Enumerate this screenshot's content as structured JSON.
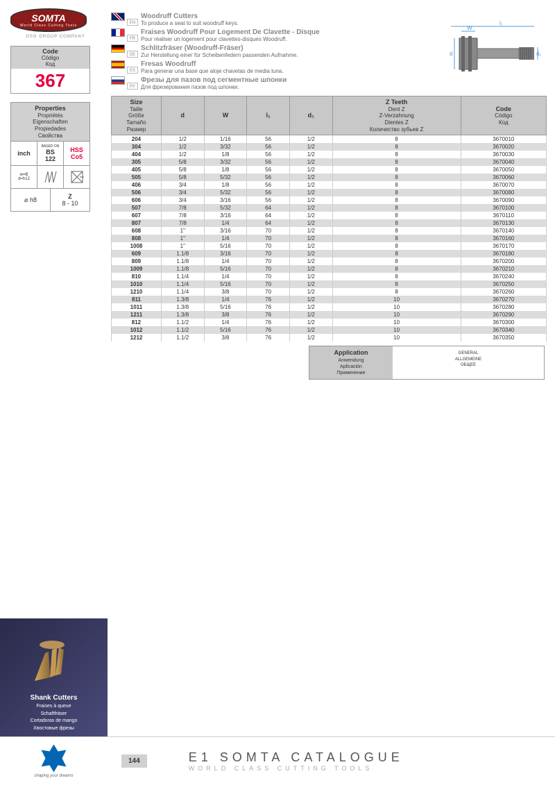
{
  "logo": {
    "name": "SOMTA",
    "sub": "World Class Cutting Tools",
    "osg": "OSG GROUP COMPANY"
  },
  "code": {
    "labels": "Code\nCódigo\nКод",
    "value": "367"
  },
  "props": {
    "header": "Properties\nPropriétés\nEigenschaften\nPropiedades\nСвойства",
    "inch": "inch",
    "based": "BASED ON",
    "bs": "BS\n122",
    "hss": "HSS\nCo5",
    "h8": "⌀ h8",
    "z": "Z",
    "zrange": "8 - 10"
  },
  "titles": [
    {
      "lang": "EN",
      "main": "Woodruff Cutters",
      "sub": "To produce a seat to suit woodruff keys."
    },
    {
      "lang": "FR",
      "main": "Fraises Woodruff Pour Logement De Clavette - Disque",
      "sub": "Pour réaliser un logement pour clavettes-disques Woodruff."
    },
    {
      "lang": "DE",
      "main": "Schlitzfräser (Woodruff-Fräser)",
      "sub": "Zur Herstellung einer für Scheibenfedern passenden Aufnahme."
    },
    {
      "lang": "ES",
      "main": "Fresas Woodruff",
      "sub": "Para generar una base que aloje chavetas de media luna."
    },
    {
      "lang": "РУ",
      "main": "Фрезы для пазов под сегментные шпонки",
      "sub": "Для фрезерования пазов под шпонки."
    }
  ],
  "diagram": {
    "w": "W",
    "l": "l₁",
    "d": "d",
    "d1": "d₁"
  },
  "table": {
    "headers": {
      "size": "Size\nTaille\nGröße\nTamaño\nРазмер",
      "d": "d",
      "w": "W",
      "l": "l₁",
      "d1": "d₁",
      "z": "Z Teeth\nDent Z\nZ-Verzahnung\nDientes Z\nКоличество зубьев Z",
      "code": "Code\nCódigo\nКод"
    },
    "rows": [
      [
        "204",
        "1/2",
        "1/16",
        "56",
        "1/2",
        "8",
        "3670010"
      ],
      [
        "304",
        "1/2",
        "3/32",
        "56",
        "1/2",
        "8",
        "3670020"
      ],
      [
        "404",
        "1/2",
        "1/8",
        "56",
        "1/2",
        "8",
        "3670030"
      ],
      [
        "305",
        "5/8",
        "3/32",
        "56",
        "1/2",
        "8",
        "3670040"
      ],
      [
        "405",
        "5/8",
        "1/8",
        "56",
        "1/2",
        "8",
        "3670050"
      ],
      [
        "505",
        "5/8",
        "5/32",
        "56",
        "1/2",
        "8",
        "3670060"
      ],
      [
        "406",
        "3/4",
        "1/8",
        "56",
        "1/2",
        "8",
        "3670070"
      ],
      [
        "506",
        "3/4",
        "5/32",
        "56",
        "1/2",
        "8",
        "3670080"
      ],
      [
        "606",
        "3/4",
        "3/16",
        "56",
        "1/2",
        "8",
        "3670090"
      ],
      [
        "507",
        "7/8",
        "5/32",
        "64",
        "1/2",
        "8",
        "3670100"
      ],
      [
        "607",
        "7/8",
        "3/16",
        "64",
        "1/2",
        "8",
        "3670110"
      ],
      [
        "807",
        "7/8",
        "1/4",
        "64",
        "1/2",
        "8",
        "3670130"
      ],
      [
        "608",
        "1\"",
        "3/16",
        "70",
        "1/2",
        "8",
        "3670140"
      ],
      [
        "808",
        "1\"",
        "1/4",
        "70",
        "1/2",
        "8",
        "3670160"
      ],
      [
        "1008",
        "1\"",
        "5/16",
        "70",
        "1/2",
        "8",
        "3670170"
      ],
      [
        "609",
        "1.1/8",
        "3/16",
        "70",
        "1/2",
        "8",
        "3670180"
      ],
      [
        "809",
        "1.1/8",
        "1/4",
        "70",
        "1/2",
        "8",
        "3670200"
      ],
      [
        "1009",
        "1.1/8",
        "5/16",
        "70",
        "1/2",
        "8",
        "3670210"
      ],
      [
        "810",
        "1.1/4",
        "1/4",
        "70",
        "1/2",
        "8",
        "3670240"
      ],
      [
        "1010",
        "1.1/4",
        "5/16",
        "70",
        "1/2",
        "8",
        "3670250"
      ],
      [
        "1210",
        "1.1/4",
        "3/8",
        "70",
        "1/2",
        "8",
        "3670260"
      ],
      [
        "811",
        "1.3/8",
        "1/4",
        "76",
        "1/2",
        "10",
        "3670270"
      ],
      [
        "1011",
        "1.3/8",
        "5/16",
        "76",
        "1/2",
        "10",
        "3670280"
      ],
      [
        "1211",
        "1.3/8",
        "3/8",
        "76",
        "1/2",
        "10",
        "3670290"
      ],
      [
        "812",
        "1.1/2",
        "1/4",
        "76",
        "1/2",
        "10",
        "3670300"
      ],
      [
        "1012",
        "1.1/2",
        "5/16",
        "76",
        "1/2",
        "10",
        "3670340"
      ],
      [
        "1212",
        "1.1/2",
        "3/8",
        "76",
        "1/2",
        "10",
        "3670350"
      ]
    ]
  },
  "app": {
    "header": "Application\nAnwendung\nAplicación\nПрименение",
    "value": "GENERAL\nALLGEMEINE\nОБЩЕЕ"
  },
  "shank": {
    "title": "Shank Cutters",
    "fr": "Fraises à queue",
    "de": "Schaftfräser",
    "es": "Cortadoras de mango",
    "ru": "Хвостовые фрезы"
  },
  "footer": {
    "tag": "shaping your dreams",
    "page": "144",
    "cat": "E1 SOMTA CATALOGUE",
    "catsub": "WORLD CLASS CUTTING TOOLS"
  }
}
